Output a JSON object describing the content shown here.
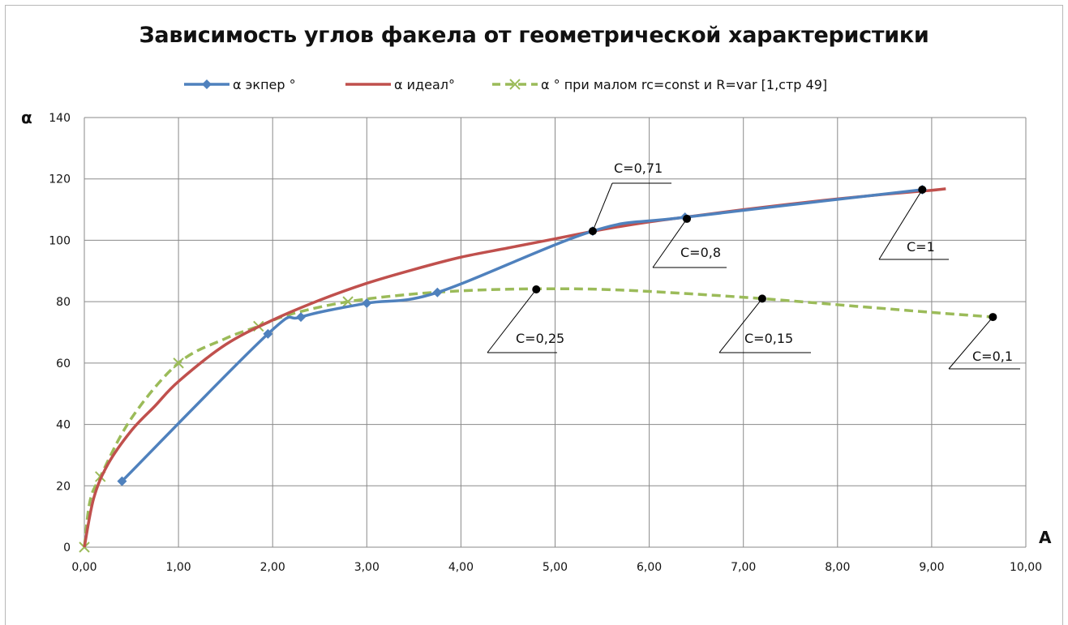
{
  "chart_data": {
    "type": "line",
    "title": "Зависимость углов факела от геометрической характеристики",
    "xlabel": "A",
    "ylabel": "α",
    "xlim": [
      0,
      10
    ],
    "ylim": [
      0,
      140
    ],
    "x_ticks": [
      "0,00",
      "1,00",
      "2,00",
      "3,00",
      "4,00",
      "5,00",
      "6,00",
      "7,00",
      "8,00",
      "9,00",
      "10,00"
    ],
    "y_ticks": [
      "0",
      "20",
      "40",
      "60",
      "80",
      "100",
      "120",
      "140"
    ],
    "grid": true,
    "legend_position": "top",
    "series": [
      {
        "name": "α экпер °",
        "color": "#4f81bd",
        "style": "solid",
        "marker": "diamond",
        "x": [
          0.4,
          1.95,
          2.3,
          3.0,
          3.75,
          5.4,
          6.38,
          8.9
        ],
        "y": [
          21.5,
          69.5,
          75.0,
          79.5,
          83.0,
          103.0,
          107.5,
          116.5
        ]
      },
      {
        "name": "α идеал°",
        "color": "#c0504d",
        "style": "solid",
        "marker": "none",
        "x": [
          0.0,
          0.1,
          0.25,
          0.5,
          0.75,
          1.0,
          1.5,
          2.0,
          2.5,
          3.0,
          3.5,
          4.0,
          4.5,
          5.0,
          5.5,
          6.0,
          6.5,
          7.0,
          7.5,
          8.0,
          8.5,
          9.0,
          9.15
        ],
        "y": [
          0,
          16,
          27,
          38,
          46,
          54,
          66,
          74,
          80.5,
          86,
          90.5,
          94.5,
          97.5,
          100.5,
          103.5,
          106,
          108,
          110,
          111.8,
          113.5,
          115,
          116.3,
          116.8
        ]
      },
      {
        "name": "α ° при малом rc=const и R=var [1,стр 49]",
        "color": "#9bbb59",
        "style": "dashed",
        "marker": "x",
        "x": [
          0.0,
          0.06,
          0.17,
          0.5,
          1.0,
          1.5,
          1.85,
          2.2,
          2.8,
          3.5,
          4.2,
          4.9,
          5.5,
          6.2,
          7.2,
          8.2,
          9.0,
          9.65
        ],
        "y": [
          0,
          15,
          23,
          42,
          60,
          68,
          72,
          76,
          80,
          82.5,
          83.8,
          84.2,
          84,
          83,
          81,
          78.5,
          76.5,
          75
        ],
        "marker_x": [
          0.0,
          0.17,
          1.0,
          1.85,
          2.8
        ]
      }
    ],
    "annotations": [
      {
        "text": "C=0,71",
        "point": [
          5.4,
          103
        ]
      },
      {
        "text": "C=0,8",
        "point": [
          6.4,
          107
        ]
      },
      {
        "text": "C=1",
        "point": [
          8.9,
          116.5
        ]
      },
      {
        "text": "C=0,25",
        "point": [
          4.8,
          84
        ]
      },
      {
        "text": "C=0,15",
        "point": [
          7.2,
          81
        ]
      },
      {
        "text": "C=0,1",
        "point": [
          9.65,
          75
        ]
      }
    ]
  }
}
